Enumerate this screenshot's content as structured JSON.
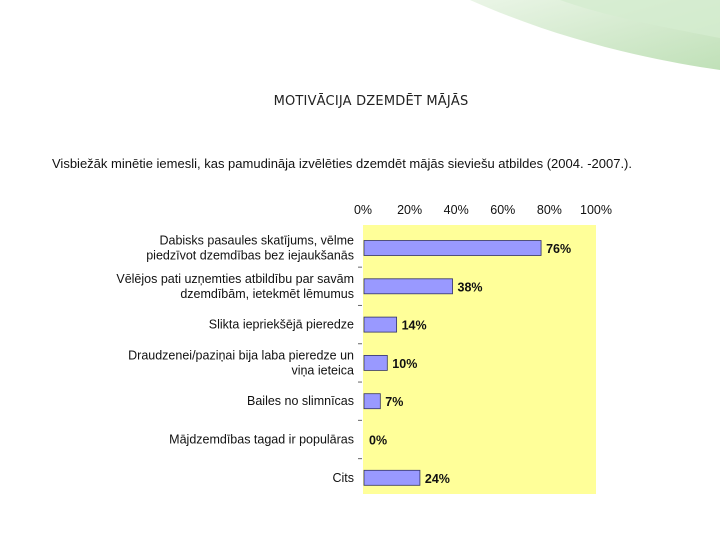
{
  "slide": {
    "title": "MOTIVĀCIJA DZEMDĒT MĀJĀS",
    "subtitle": "Visbiežāk minētie iemesli, kas pamudināja izvēlēties dzemdēt mājās sieviešu atbildes (2004. -2007.)."
  },
  "colors": {
    "plot_background": "#FFFF99",
    "bar_fill": "#9999FF",
    "bar_stroke": "#333366",
    "accent_green": "#CFE8C8"
  },
  "chart_data": {
    "type": "bar",
    "orientation": "horizontal",
    "title": "",
    "xlabel": "",
    "ylabel": "",
    "xlim": [
      0,
      100
    ],
    "x_ticks": [
      "0%",
      "20%",
      "40%",
      "60%",
      "80%",
      "100%"
    ],
    "x_tick_values": [
      0,
      20,
      40,
      60,
      80,
      100
    ],
    "x_axis_position": "top",
    "grid": false,
    "categories": [
      [
        "Dabisks pasaules skatījums, vēlme",
        "piedzīvot dzemdības bez iejaukšanās"
      ],
      [
        "Vēlējos pati uzņemties atbildību par savām",
        "dzemdībām, ietekmēt lēmumus"
      ],
      [
        "Slikta iepriekšējā pieredze"
      ],
      [
        "Draudzenei/paziņai bija laba pieredze un",
        "viņa ieteica"
      ],
      [
        "Bailes no slimnīcas"
      ],
      [
        "Mājdzemdības tagad ir populāras"
      ],
      [
        "Cits"
      ]
    ],
    "values": [
      76,
      38,
      14,
      10,
      7,
      0,
      24
    ],
    "data_labels": [
      "76%",
      "38%",
      "14%",
      "10%",
      "7%",
      "0%",
      "24%"
    ]
  }
}
